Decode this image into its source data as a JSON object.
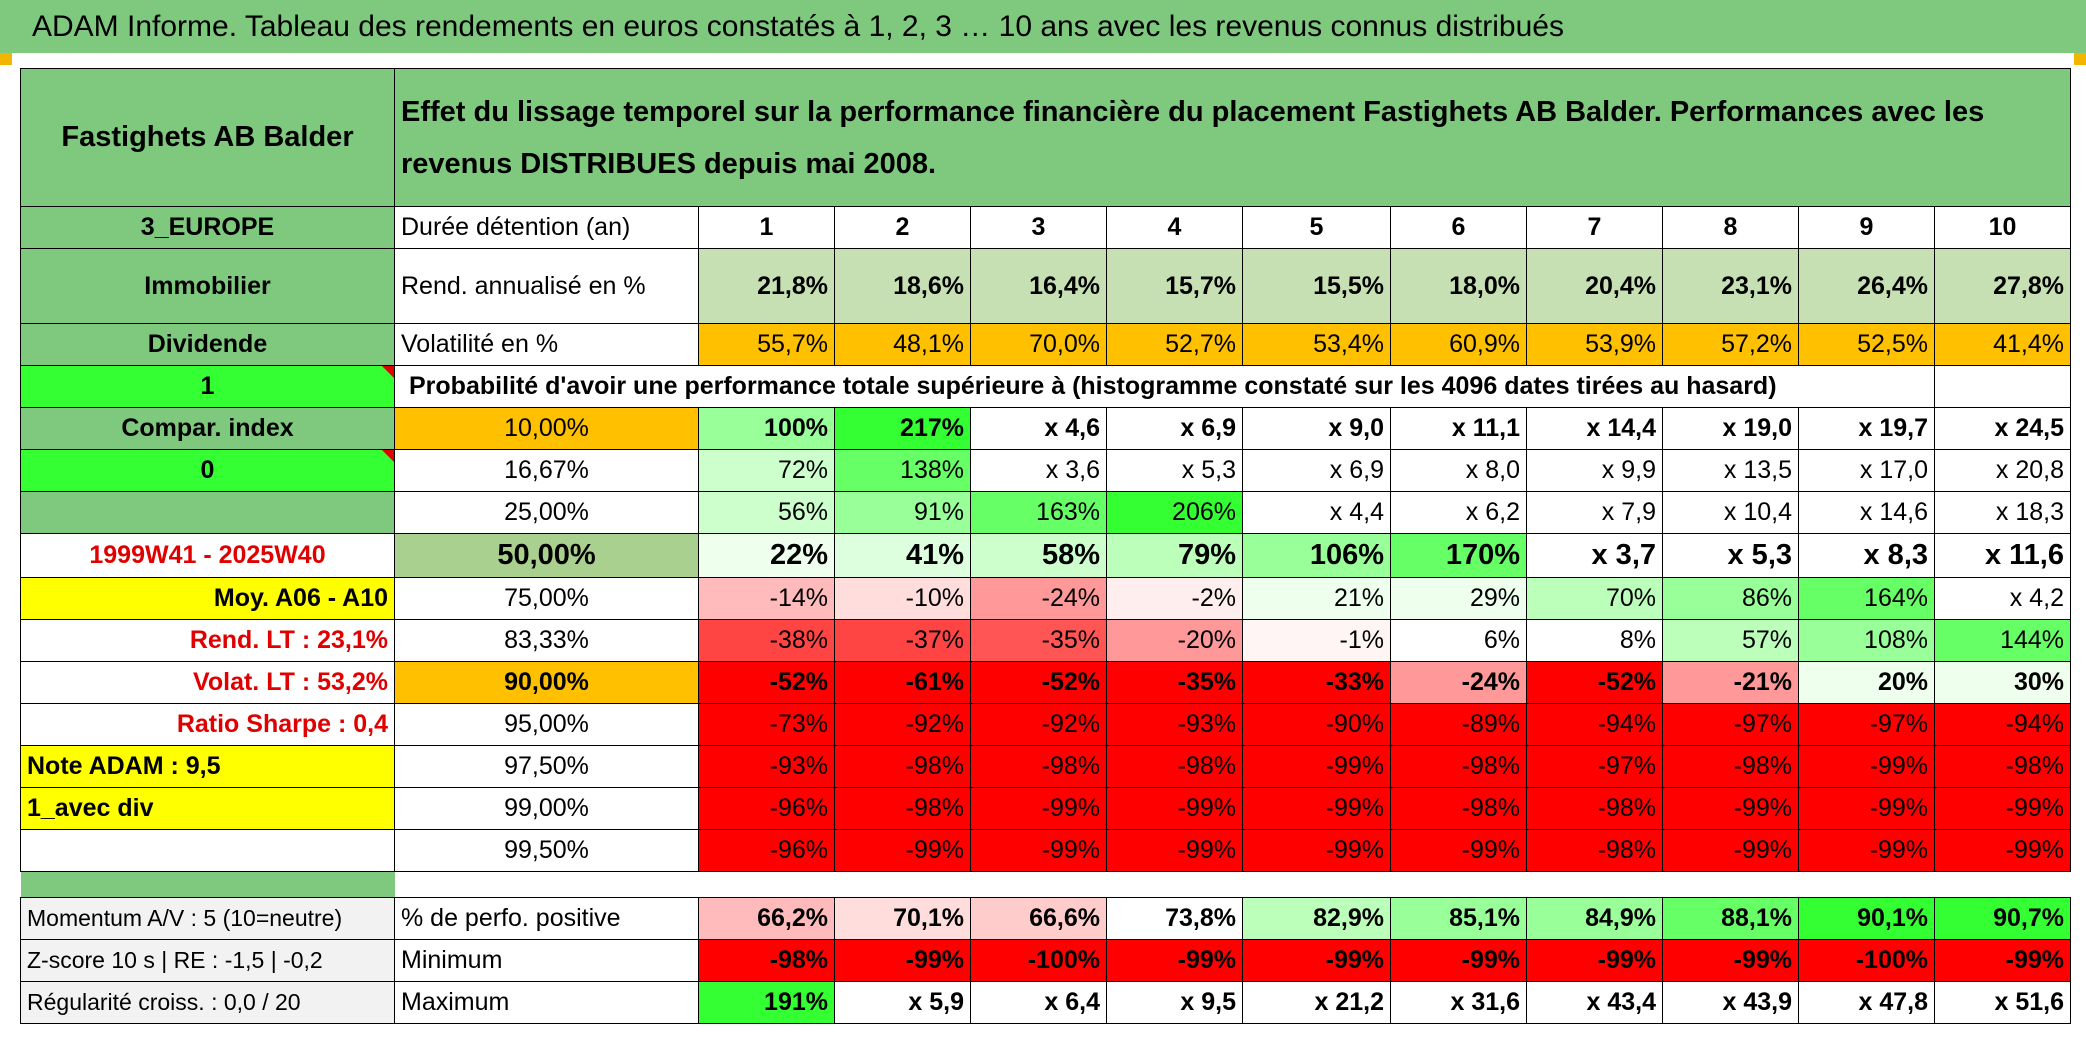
{
  "title": "ADAM Informe. Tableau des rendements en euros constatés à 1, 2, 3 … 10 ans avec les revenus connus distribués",
  "fund_name": "Fastighets AB Balder",
  "description": "Effet du lissage temporel sur la performance financière du placement Fastighets AB Balder. Performances avec les revenus DISTRIBUES depuis mai 2008.",
  "colors": {
    "header_green": "#7fc97f",
    "light_green": "#a9d08e",
    "bright_green": "#33ff33",
    "yellow": "#ffff00",
    "orange": "#ffc000",
    "red": "#ff0000",
    "label_red": "#e00000"
  },
  "side": {
    "region": "3_EUROPE",
    "category": "Immobilier",
    "type": "Dividende",
    "switch_1": "1",
    "compar_index": "Compar. index",
    "switch_2": "0",
    "period": "1999W41 - 2025W40",
    "moy": "Moy. A06 - A10",
    "rend_lt": "Rend. LT :    23,1%",
    "volat_lt": "Volat. LT :    53,2%",
    "sharpe": "Ratio Sharpe :    0,4",
    "note": "Note ADAM : 9,5",
    "avec_div": "1_avec div"
  },
  "table": {
    "duration_label": "Durée détention (an)",
    "years": [
      "1",
      "2",
      "3",
      "4",
      "5",
      "6",
      "7",
      "8",
      "9",
      "10"
    ],
    "rend_label": "Rend. annualisé en %",
    "rend": [
      "21,8%",
      "18,6%",
      "16,4%",
      "15,7%",
      "15,5%",
      "18,0%",
      "20,4%",
      "23,1%",
      "26,4%",
      "27,8%"
    ],
    "vol_label": "Volatilité en %",
    "vol": [
      "55,7%",
      "48,1%",
      "70,0%",
      "52,7%",
      "53,4%",
      "60,9%",
      "53,9%",
      "57,2%",
      "52,5%",
      "41,4%"
    ],
    "prob_label": "Probabilité d'avoir une performance totale supérieure à (histogramme constaté sur les 4096 dates tirées au hasard)",
    "prob_rows": [
      {
        "p": "10,00%",
        "v": [
          "100%",
          "217%",
          "x 4,6",
          "x 6,9",
          "x 9,0",
          "x 11,1",
          "x 14,4",
          "x 19,0",
          "x 19,7",
          "x 24,5"
        ]
      },
      {
        "p": "16,67%",
        "v": [
          "72%",
          "138%",
          "x 3,6",
          "x 5,3",
          "x 6,9",
          "x 8,0",
          "x 9,9",
          "x 13,5",
          "x 17,0",
          "x 20,8"
        ]
      },
      {
        "p": "25,00%",
        "v": [
          "56%",
          "91%",
          "163%",
          "206%",
          "x 4,4",
          "x 6,2",
          "x 7,9",
          "x 10,4",
          "x 14,6",
          "x 18,3"
        ]
      },
      {
        "p": "50,00%",
        "v": [
          "22%",
          "41%",
          "58%",
          "79%",
          "106%",
          "170%",
          "x 3,7",
          "x 5,3",
          "x 8,3",
          "x 11,6"
        ]
      },
      {
        "p": "75,00%",
        "v": [
          "-14%",
          "-10%",
          "-24%",
          "-2%",
          "21%",
          "29%",
          "70%",
          "86%",
          "164%",
          "x 4,2"
        ]
      },
      {
        "p": "83,33%",
        "v": [
          "-38%",
          "-37%",
          "-35%",
          "-20%",
          "-1%",
          "6%",
          "8%",
          "57%",
          "108%",
          "144%"
        ]
      },
      {
        "p": "90,00%",
        "v": [
          "-52%",
          "-61%",
          "-52%",
          "-35%",
          "-33%",
          "-24%",
          "-52%",
          "-21%",
          "20%",
          "30%"
        ]
      },
      {
        "p": "95,00%",
        "v": [
          "-73%",
          "-92%",
          "-92%",
          "-93%",
          "-90%",
          "-89%",
          "-94%",
          "-97%",
          "-97%",
          "-94%"
        ]
      },
      {
        "p": "97,50%",
        "v": [
          "-93%",
          "-98%",
          "-98%",
          "-98%",
          "-99%",
          "-98%",
          "-97%",
          "-98%",
          "-99%",
          "-98%"
        ]
      },
      {
        "p": "99,00%",
        "v": [
          "-96%",
          "-98%",
          "-99%",
          "-99%",
          "-99%",
          "-98%",
          "-98%",
          "-99%",
          "-99%",
          "-99%"
        ]
      },
      {
        "p": "99,50%",
        "v": [
          "-96%",
          "-99%",
          "-99%",
          "-99%",
          "-99%",
          "-99%",
          "-98%",
          "-99%",
          "-99%",
          "-99%"
        ]
      }
    ],
    "bottom": [
      {
        "side": "Momentum A/V : 5 (10=neutre)",
        "label": "% de perfo. positive",
        "v": [
          "66,2%",
          "70,1%",
          "66,6%",
          "73,8%",
          "82,9%",
          "85,1%",
          "84,9%",
          "88,1%",
          "90,1%",
          "90,7%"
        ]
      },
      {
        "side": "Z-score 10 s | RE : -1,5 | -0,2",
        "label": "Minimum",
        "v": [
          "-98%",
          "-99%",
          "-100%",
          "-99%",
          "-99%",
          "-99%",
          "-99%",
          "-99%",
          "-100%",
          "-99%"
        ]
      },
      {
        "side": "Régularité croiss. : 0,0 / 20",
        "label": "Maximum",
        "v": [
          "191%",
          "x 5,9",
          "x 6,4",
          "x 9,5",
          "x 21,2",
          "x 31,6",
          "x 43,4",
          "x 43,9",
          "x 47,8",
          "x 51,6"
        ]
      }
    ]
  }
}
